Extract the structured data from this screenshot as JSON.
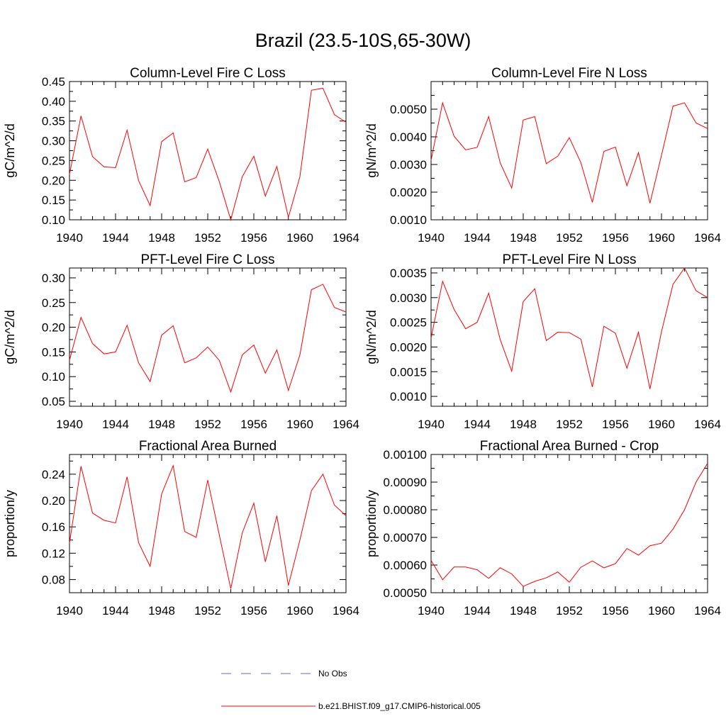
{
  "figure": {
    "title": "Brazil (23.5-10S,65-30W)"
  },
  "legend": {
    "entries": [
      {
        "label": "No Obs",
        "color": "#6666cc",
        "style": "dashed"
      },
      {
        "label": "b.e21.BHIST.f09_g17.CMIP6-historical.005",
        "color": "#ff0000",
        "style": "solid"
      }
    ]
  },
  "chart_data": [
    {
      "type": "line",
      "title": "Column-Level Fire C Loss",
      "xlabel": "",
      "ylabel": "gC/m^2/d",
      "xlim": [
        1940,
        1964
      ],
      "ylim": [
        0.1,
        0.45
      ],
      "xticks": [
        "1940",
        "1944",
        "1948",
        "1952",
        "1956",
        "1960",
        "1964"
      ],
      "yticks": [
        "0.10",
        "0.15",
        "0.20",
        "0.25",
        "0.30",
        "0.35",
        "0.40",
        "0.45"
      ],
      "x": [
        1940,
        1941,
        1942,
        1943,
        1944,
        1945,
        1946,
        1947,
        1948,
        1949,
        1950,
        1951,
        1952,
        1953,
        1954,
        1955,
        1956,
        1957,
        1958,
        1959,
        1960,
        1961,
        1962,
        1963,
        1964
      ],
      "series": [
        {
          "name": "b.e21.BHIST.f09_g17.CMIP6-historical.005",
          "color": "#ff0000",
          "values": [
            0.215,
            0.363,
            0.26,
            0.234,
            0.232,
            0.327,
            0.199,
            0.136,
            0.298,
            0.32,
            0.196,
            0.207,
            0.279,
            0.197,
            0.1,
            0.209,
            0.261,
            0.16,
            0.235,
            0.106,
            0.209,
            0.428,
            0.433,
            0.366,
            0.347
          ]
        }
      ]
    },
    {
      "type": "line",
      "title": "Column-Level Fire N Loss",
      "xlabel": "",
      "ylabel": "gN/m^2/d",
      "xlim": [
        1940,
        1964
      ],
      "ylim": [
        0.001,
        0.006
      ],
      "xticks": [
        "1940",
        "1944",
        "1948",
        "1952",
        "1956",
        "1960",
        "1964"
      ],
      "yticks": [
        "0.0010",
        "0.0020",
        "0.0030",
        "0.0040",
        "0.0050"
      ],
      "x": [
        1940,
        1941,
        1942,
        1943,
        1944,
        1945,
        1946,
        1947,
        1948,
        1949,
        1950,
        1951,
        1952,
        1953,
        1954,
        1955,
        1956,
        1957,
        1958,
        1959,
        1960,
        1961,
        1962,
        1963,
        1964
      ],
      "series": [
        {
          "name": "b.e21.BHIST.f09_g17.CMIP6-historical.005",
          "color": "#ff0000",
          "values": [
            0.00315,
            0.00523,
            0.00402,
            0.00353,
            0.00362,
            0.00473,
            0.00306,
            0.00215,
            0.00461,
            0.00473,
            0.00303,
            0.0033,
            0.00397,
            0.00307,
            0.00163,
            0.00347,
            0.00363,
            0.00223,
            0.00343,
            0.0016,
            0.00333,
            0.00511,
            0.00523,
            0.0045,
            0.0043
          ]
        }
      ]
    },
    {
      "type": "line",
      "title": "PFT-Level Fire C Loss",
      "xlabel": "",
      "ylabel": "gC/m^2/d",
      "xlim": [
        1940,
        1964
      ],
      "ylim": [
        0.04,
        0.32
      ],
      "xticks": [
        "1940",
        "1944",
        "1948",
        "1952",
        "1956",
        "1960",
        "1964"
      ],
      "yticks": [
        "0.05",
        "0.10",
        "0.15",
        "0.20",
        "0.25",
        "0.30"
      ],
      "x": [
        1940,
        1941,
        1942,
        1943,
        1944,
        1945,
        1946,
        1947,
        1948,
        1949,
        1950,
        1951,
        1952,
        1953,
        1954,
        1955,
        1956,
        1957,
        1958,
        1959,
        1960,
        1961,
        1962,
        1963,
        1964
      ],
      "series": [
        {
          "name": "b.e21.BHIST.f09_g17.CMIP6-historical.005",
          "color": "#ff0000",
          "values": [
            0.133,
            0.22,
            0.167,
            0.146,
            0.15,
            0.204,
            0.128,
            0.09,
            0.184,
            0.203,
            0.128,
            0.138,
            0.16,
            0.133,
            0.069,
            0.144,
            0.164,
            0.107,
            0.154,
            0.072,
            0.144,
            0.276,
            0.287,
            0.24,
            0.231
          ]
        }
      ]
    },
    {
      "type": "line",
      "title": "PFT-Level Fire N Loss",
      "xlabel": "",
      "ylabel": "gN/m^2/d",
      "xlim": [
        1940,
        1964
      ],
      "ylim": [
        0.0008,
        0.0036
      ],
      "xticks": [
        "1940",
        "1944",
        "1948",
        "1952",
        "1956",
        "1960",
        "1964"
      ],
      "yticks": [
        "0.0010",
        "0.0015",
        "0.0020",
        "0.0025",
        "0.0030",
        "0.0035"
      ],
      "x": [
        1940,
        1941,
        1942,
        1943,
        1944,
        1945,
        1946,
        1947,
        1948,
        1949,
        1950,
        1951,
        1952,
        1953,
        1954,
        1955,
        1956,
        1957,
        1958,
        1959,
        1960,
        1961,
        1962,
        1963,
        1964
      ],
      "series": [
        {
          "name": "b.e21.BHIST.f09_g17.CMIP6-historical.005",
          "color": "#ff0000",
          "values": [
            0.00218,
            0.00333,
            0.00276,
            0.00237,
            0.0025,
            0.00309,
            0.00215,
            0.00151,
            0.00292,
            0.00318,
            0.00213,
            0.0023,
            0.00229,
            0.00216,
            0.00119,
            0.00242,
            0.00228,
            0.00157,
            0.0023,
            0.00115,
            0.00231,
            0.00327,
            0.0036,
            0.00314,
            0.003
          ]
        }
      ]
    },
    {
      "type": "line",
      "title": "Fractional Area Burned",
      "xlabel": "",
      "ylabel": "proportion/y",
      "xlim": [
        1940,
        1964
      ],
      "ylim": [
        0.06,
        0.27
      ],
      "xticks": [
        "1940",
        "1944",
        "1948",
        "1952",
        "1956",
        "1960",
        "1964"
      ],
      "yticks": [
        "0.08",
        "0.12",
        "0.16",
        "0.20",
        "0.24"
      ],
      "x": [
        1940,
        1941,
        1942,
        1943,
        1944,
        1945,
        1946,
        1947,
        1948,
        1949,
        1950,
        1951,
        1952,
        1953,
        1954,
        1955,
        1956,
        1957,
        1958,
        1959,
        1960,
        1961,
        1962,
        1963,
        1964
      ],
      "series": [
        {
          "name": "b.e21.BHIST.f09_g17.CMIP6-historical.005",
          "color": "#ff0000",
          "values": [
            0.135,
            0.252,
            0.181,
            0.17,
            0.166,
            0.236,
            0.136,
            0.1,
            0.21,
            0.253,
            0.153,
            0.144,
            0.231,
            0.148,
            0.066,
            0.151,
            0.196,
            0.107,
            0.177,
            0.071,
            0.14,
            0.215,
            0.24,
            0.193,
            0.177
          ]
        }
      ]
    },
    {
      "type": "line",
      "title": "Fractional Area Burned - Crop",
      "xlabel": "",
      "ylabel": "proportion/y",
      "xlim": [
        1940,
        1964
      ],
      "ylim": [
        0.0005,
        0.001
      ],
      "xticks": [
        "1940",
        "1944",
        "1948",
        "1952",
        "1956",
        "1960",
        "1964"
      ],
      "yticks": [
        "0.00050",
        "0.00060",
        "0.00070",
        "0.00080",
        "0.00090",
        "0.00100"
      ],
      "x": [
        1940,
        1941,
        1942,
        1943,
        1944,
        1945,
        1946,
        1947,
        1948,
        1949,
        1950,
        1951,
        1952,
        1953,
        1954,
        1955,
        1956,
        1957,
        1958,
        1959,
        1960,
        1961,
        1962,
        1963,
        1964
      ],
      "series": [
        {
          "name": "b.e21.BHIST.f09_g17.CMIP6-historical.005",
          "color": "#ff0000",
          "values": [
            0.000617,
            0.000547,
            0.000593,
            0.000593,
            0.000583,
            0.000552,
            0.00059,
            0.000568,
            0.000523,
            0.000541,
            0.000554,
            0.000575,
            0.000538,
            0.000592,
            0.000615,
            0.00059,
            0.000605,
            0.00066,
            0.000636,
            0.00067,
            0.000679,
            0.00073,
            0.0008,
            0.0009,
            0.000968
          ]
        }
      ]
    }
  ]
}
